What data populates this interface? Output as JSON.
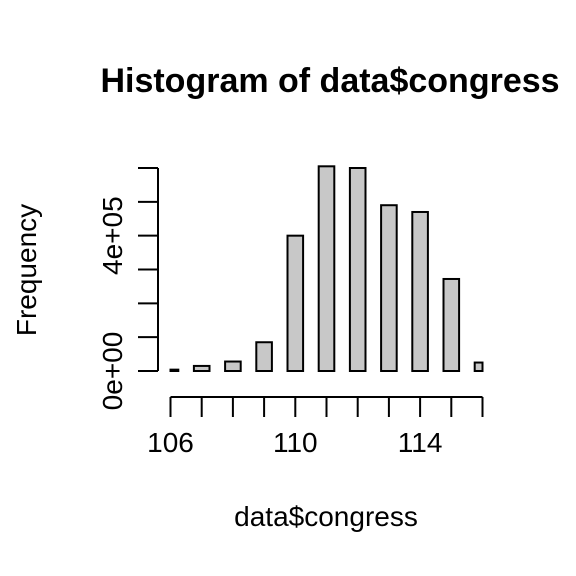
{
  "chart_data": {
    "type": "bar",
    "title": "Histogram of data$congress",
    "xlabel": "data$congress",
    "ylabel": "Frequency",
    "xlim": [
      106,
      116
    ],
    "ylim": [
      0,
      600000
    ],
    "x_ticks": [
      106,
      107,
      108,
      109,
      110,
      111,
      112,
      113,
      114,
      115,
      116
    ],
    "x_tick_labels": [
      "106",
      "110",
      "114"
    ],
    "x_tick_label_values": [
      106,
      110,
      114
    ],
    "y_ticks": [
      0,
      100000,
      200000,
      300000,
      400000,
      500000,
      600000
    ],
    "y_tick_labels": [
      "0e+00",
      "4e+05"
    ],
    "y_tick_label_values": [
      0,
      400000
    ],
    "bar_width": 0.5,
    "bars": [
      {
        "x": 106,
        "value": 4000
      },
      {
        "x": 107,
        "value": 15000
      },
      {
        "x": 108,
        "value": 28000
      },
      {
        "x": 109,
        "value": 85000
      },
      {
        "x": 110,
        "value": 400000
      },
      {
        "x": 111,
        "value": 605000
      },
      {
        "x": 112,
        "value": 600000
      },
      {
        "x": 113,
        "value": 490000
      },
      {
        "x": 114,
        "value": 470000
      },
      {
        "x": 115,
        "value": 272000
      },
      {
        "x": 116,
        "value": 25000
      }
    ],
    "grid": false,
    "legend": "none"
  }
}
